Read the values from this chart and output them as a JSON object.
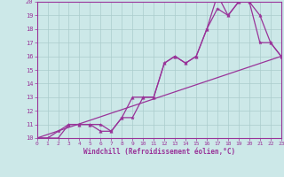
{
  "xlabel": "Windchill (Refroidissement éolien,°C)",
  "bg_color": "#cce8e8",
  "grid_color": "#aacccc",
  "line_color": "#993399",
  "xlim": [
    0,
    23
  ],
  "ylim": [
    10,
    20
  ],
  "xticks": [
    0,
    1,
    2,
    3,
    4,
    5,
    6,
    7,
    8,
    9,
    10,
    11,
    12,
    13,
    14,
    15,
    16,
    17,
    18,
    19,
    20,
    21,
    22,
    23
  ],
  "yticks": [
    10,
    11,
    12,
    13,
    14,
    15,
    16,
    17,
    18,
    19,
    20
  ],
  "line1_x": [
    0,
    1,
    2,
    3,
    4,
    5,
    6,
    7,
    8,
    9,
    10,
    11,
    12,
    13,
    14,
    15,
    16,
    17,
    18,
    19,
    20,
    21,
    22,
    23
  ],
  "line1_y": [
    10,
    10,
    10,
    11,
    11,
    11,
    10.5,
    10.5,
    11.5,
    13,
    13,
    13,
    15.5,
    16,
    15.5,
    16,
    18,
    20.5,
    19,
    20,
    20,
    19,
    17,
    16
  ],
  "line2_x": [
    0,
    1,
    2,
    3,
    4,
    5,
    6,
    7,
    8,
    9,
    10,
    11,
    12,
    13,
    14,
    15,
    16,
    17,
    18,
    19,
    20,
    21,
    22,
    23
  ],
  "line2_y": [
    10,
    10,
    10.5,
    11,
    11,
    11,
    11,
    10.5,
    11.5,
    11.5,
    13,
    13,
    15.5,
    16,
    15.5,
    16,
    18,
    19.5,
    19,
    20,
    20,
    17,
    17,
    16
  ],
  "line3_x": [
    0,
    23
  ],
  "line3_y": [
    10,
    16
  ],
  "tick_fontsize": 5,
  "xlabel_fontsize": 5.5
}
